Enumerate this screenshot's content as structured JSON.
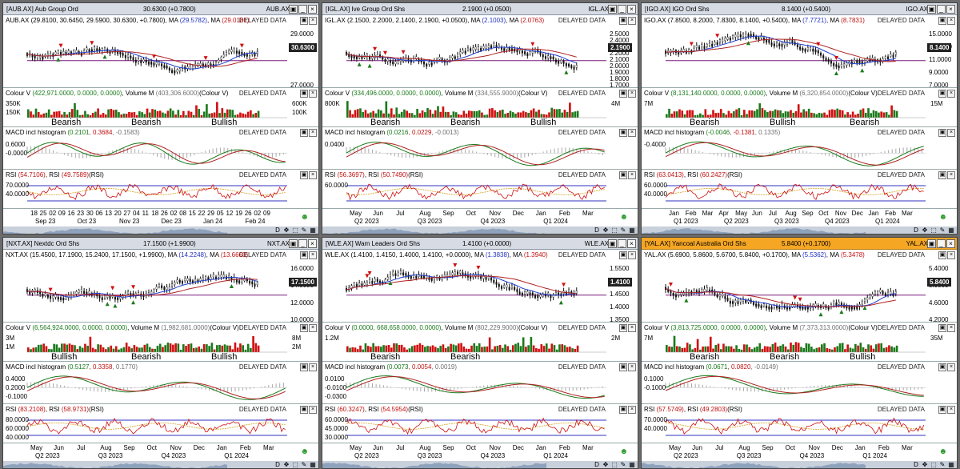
{
  "colors": {
    "up": "#1a7a1a",
    "down": "#d01010",
    "ma_fast": "#1f3fd0",
    "ma_slow": "#b02020",
    "active_title": "#f5a623",
    "title": "#d6dbe4"
  },
  "delayed_text": "DELAYED DATA",
  "window_buttons": [
    "▣",
    "_",
    "×"
  ],
  "pane_buttons": [
    "▣",
    "×"
  ],
  "toolbar_icons": [
    "D",
    "✥",
    "⬚",
    "✎",
    "▦",
    "☻"
  ],
  "panels": [
    {
      "title": "[AUB.AX] Aub Group Ord",
      "price": "30.6300 (+0.7800)",
      "symbol": "AUB.AX",
      "active": false,
      "price_label": "AUB.AX (29.8100, 30.6450, 29.5900, 30.6300, +0.7800), MA ",
      "ma1": "(29.5782)",
      "ma2": "(29.0181)",
      "last_price": "30.6300",
      "y_axis": [
        "29.0000",
        "27.0000"
      ],
      "colour_label": "Colour V ",
      "colour_vals": "(422,971.0000, 0.0000, 0.0000)",
      "volume_label": ", Volume M ",
      "volume_val": "(403,306.6000)",
      "colour_suffix": "(Colour V)",
      "vol_axis": [
        "350K",
        "150K"
      ],
      "vol_axis_right": [
        "600K",
        "100K"
      ],
      "trends": [
        "Bearish",
        "Bearish",
        "Bullish"
      ],
      "macd_label": "MACD incl histogram ",
      "macd_vals": [
        "(0.2101",
        ", 0.3684",
        ", -0.1583)"
      ],
      "macd_axis": [
        "0.6000",
        "-0.0000"
      ],
      "rsi_label": "RSI ",
      "rsi_vals": [
        "(54.7106)",
        ", RSI ",
        "(49.7589)",
        "(RSI)"
      ],
      "rsi_axis": [
        "70.0000",
        "40.0000"
      ],
      "x_ticks": [
        "18",
        "25",
        "02",
        "09",
        "16",
        "23",
        "30",
        "06",
        "13",
        "20",
        "27",
        "04",
        "11",
        "18",
        "26",
        "02",
        "08",
        "15",
        "22",
        "29",
        "05",
        "12",
        "19",
        "26",
        "02",
        "09"
      ],
      "x_groups": [
        "Sep 23",
        "Oct 23",
        "Nov 23",
        "Dec 23",
        "Jan 24",
        "Feb 24"
      ]
    },
    {
      "title": "[IGL.AX] Ive Group Ord Shs",
      "price": "2.1900 (+0.0500)",
      "symbol": "IGL.AX",
      "active": false,
      "price_label": "IGL.AX (2.1500, 2.2000, 2.1400, 2.1900, +0.0500), MA ",
      "ma1": "(2.1003)",
      "ma2": "(2.0763)",
      "last_price": "2.1900",
      "y_axis": [
        "2.5000",
        "2.4000",
        "2.3000",
        "2.2000",
        "2.1000",
        "2.0000",
        "1.9000",
        "1.8000",
        "1.7000"
      ],
      "colour_label": "Colour V ",
      "colour_vals": "(334,496.0000, 0.0000, 0.0000)",
      "volume_label": ", Volume M ",
      "volume_val": "(334,555.9000)",
      "colour_suffix": "(Colour V)",
      "vol_axis": [
        "800K"
      ],
      "vol_axis_right": [
        "4M"
      ],
      "trends": [
        "Bearish",
        "Bearish",
        "Bullish"
      ],
      "macd_label": "MACD incl histogram ",
      "macd_vals": [
        "(0.0216",
        ", 0.0229",
        ", -0.0013)"
      ],
      "macd_axis": [
        "0.0400"
      ],
      "rsi_label": "RSI ",
      "rsi_vals": [
        "(56.3697)",
        ", RSI ",
        "(50.7490)",
        "(RSI)"
      ],
      "rsi_axis": [
        "60.0000"
      ],
      "x_ticks": [
        "May",
        "Jun",
        "Jul",
        "Aug",
        "Sep",
        "Oct",
        "Nov",
        "Dec",
        "Jan",
        "Feb",
        "Mar"
      ],
      "x_groups": [
        "Q2 2023",
        "Q3 2023",
        "Q4 2023",
        "Q1 2024"
      ]
    },
    {
      "title": "[IGO.AX] IGO Ord Shs",
      "price": "8.1400 (+0.5400)",
      "symbol": "IGO.AX",
      "active": false,
      "price_label": "IGO.AX (7.8500, 8.2000, 7.8300, 8.1400, +0.5400), MA ",
      "ma1": "(7.7721)",
      "ma2": "(8.7831)",
      "last_price": "8.1400",
      "y_axis": [
        "15.0000",
        "13.0000",
        "11.0000",
        "9.0000",
        "7.0000"
      ],
      "colour_label": "Colour V ",
      "colour_vals": "(8,131,140.0000, 0.0000, 0.0000)",
      "volume_label": ", Volume M ",
      "volume_val": "(6,320,854.0000)",
      "colour_suffix": "(Colour V)",
      "vol_axis": [
        "7M"
      ],
      "vol_axis_right": [
        "15M"
      ],
      "trends": [
        "Bearish",
        "Bullish",
        "Bearish"
      ],
      "macd_label": "MACD incl histogram ",
      "macd_vals": [
        "(-0.0046",
        ", -0.1381",
        ", 0.1335)"
      ],
      "macd_axis": [
        "-0.4000"
      ],
      "rsi_label": "RSI ",
      "rsi_vals": [
        "(63.0413)",
        ", RSI ",
        "(60.2427)",
        "(RSI)"
      ],
      "rsi_axis": [
        "60.0000",
        "40.0000"
      ],
      "x_ticks": [
        "Jan",
        "Feb",
        "Mar",
        "Apr",
        "May",
        "Jun",
        "Jul",
        "Aug",
        "Sep",
        "Oct",
        "Nov",
        "Dec",
        "Jan",
        "Feb",
        "Mar"
      ],
      "x_groups": [
        "Q1 2023",
        "Q2 2023",
        "Q3 2023",
        "Q4 2023",
        "Q1 2024"
      ]
    },
    {
      "title": "[NXT.AX] Nextdc Ord Shs",
      "price": "17.1500 (+1.9900)",
      "symbol": "NXT.AX",
      "active": false,
      "price_label": "NXT.AX (15.4500, 17.1900, 15.2400, 17.1500, +1.9900), MA ",
      "ma1": "(14.2248)",
      "ma2": "(13.6660)",
      "last_price": "17.1500",
      "y_axis": [
        "16.0000",
        "14.0000",
        "12.0000",
        "10.0000"
      ],
      "colour_label": "Colour V ",
      "colour_vals": "(6,564,924.0000, 0.0000, 0.0000)",
      "volume_label": ", Volume M ",
      "volume_val": "(1,982,681.0000)",
      "colour_suffix": "(Colour V)",
      "vol_axis": [
        "3M",
        "1M"
      ],
      "vol_axis_right": [
        "8M",
        "2M"
      ],
      "trends": [
        "Bullish",
        "Bearish",
        "Bullish"
      ],
      "macd_label": "MACD incl histogram ",
      "macd_vals": [
        "(0.5127",
        ", 0.3358",
        ", 0.1770)"
      ],
      "macd_axis": [
        "0.4000",
        "0.2000",
        "-0.1000"
      ],
      "rsi_label": "RSI ",
      "rsi_vals": [
        "(83.2108)",
        ", RSI ",
        "(58.9731)",
        "(RSI)"
      ],
      "rsi_axis": [
        "80.0000",
        "60.0000",
        "40.0000"
      ],
      "x_ticks": [
        "May",
        "Jun",
        "Jul",
        "Aug",
        "Sep",
        "Oct",
        "Nov",
        "Dec",
        "Jan",
        "Feb",
        "Mar"
      ],
      "x_groups": [
        "Q2 2023",
        "Q3 2023",
        "Q4 2023",
        "Q1 2024"
      ]
    },
    {
      "title": "[WLE.AX] Wam Leaders Ord Shs",
      "price": "1.4100 (+0.0000)",
      "symbol": "WLE.AX",
      "active": false,
      "price_label": "WLE.AX (1.4100, 1.4150, 1.4000, 1.4100, +0.0000), MA ",
      "ma1": "(1.3838)",
      "ma2": "(1.3940)",
      "last_price": "1.4100",
      "y_axis": [
        "1.5500",
        "1.5000",
        "1.4500",
        "1.4000",
        "1.3500"
      ],
      "colour_label": "Colour V ",
      "colour_vals": "(0.0000, 668,658.0000, 0.0000)",
      "volume_label": ", Volume M ",
      "volume_val": "(802,229.9000)",
      "colour_suffix": "(Colour V)",
      "vol_axis": [
        "1.2M"
      ],
      "vol_axis_right": [
        "2M"
      ],
      "trends": [
        "Bearish",
        "Bearish"
      ],
      "macd_label": "MACD incl histogram ",
      "macd_vals": [
        "(0.0073",
        ", 0.0054",
        ", 0.0019)"
      ],
      "macd_axis": [
        "0.0100",
        "-0.0100",
        "-0.0300"
      ],
      "rsi_label": "RSI ",
      "rsi_vals": [
        "(60.3247)",
        ", RSI ",
        "(54.5954)",
        "(RSI)"
      ],
      "rsi_axis": [
        "60.0000",
        "45.0000",
        "30.0000"
      ],
      "x_ticks": [
        "May",
        "Jun",
        "Jul",
        "Aug",
        "Sep",
        "Oct",
        "Nov",
        "Dec",
        "Jan",
        "Feb",
        "Mar"
      ],
      "x_groups": [
        "Q2 2023",
        "Q3 2023",
        "Q4 2023",
        "Q1 2024"
      ]
    },
    {
      "title": "[YAL.AX] Yancoal Australia Ord Shs",
      "price": "5.8400 (+0.1700)",
      "symbol": "YAL.AX",
      "active": true,
      "price_label": "YAL.AX (5.6900, 5.8600, 5.6700, 5.8400, +0.1700), MA ",
      "ma1": "(5.5362)",
      "ma2": "(5.3478)",
      "last_price": "5.8400",
      "y_axis": [
        "5.4000",
        "5.0000",
        "4.6000",
        "4.2000"
      ],
      "colour_label": "Colour V ",
      "colour_vals": "(3,813,725.0000, 0.0000, 0.0000)",
      "volume_label": ", Volume M ",
      "volume_val": "(7,373,313.0000)",
      "colour_suffix": "(Colour V)",
      "vol_axis": [
        "7M"
      ],
      "vol_axis_right": [
        "35M"
      ],
      "trends": [
        "Bearish",
        "Bearish",
        "Bullish"
      ],
      "macd_label": "MACD incl histogram ",
      "macd_vals": [
        "(0.0671",
        ", 0.0820",
        ", -0.0149)"
      ],
      "macd_axis": [
        "0.1000",
        "-0.1000"
      ],
      "rsi_label": "RSI ",
      "rsi_vals": [
        "(57.5749)",
        ", RSI ",
        "(49.2803)",
        "(RSI)"
      ],
      "rsi_axis": [
        "70.0000",
        "40.0000"
      ],
      "x_ticks": [
        "May",
        "Jun",
        "Jul",
        "Aug",
        "Sep",
        "Oct",
        "Nov",
        "Dec",
        "Jan",
        "Feb",
        "Mar"
      ],
      "x_groups": [
        "Q2 2023",
        "Q3 2023",
        "Q4 2023",
        "Q1 2024"
      ]
    }
  ]
}
